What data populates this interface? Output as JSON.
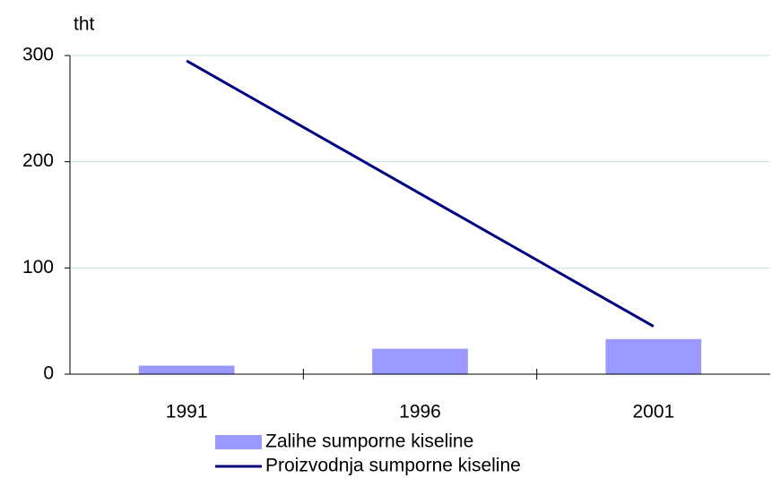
{
  "chart_data": {
    "type": "bar",
    "y_axis_label": "tht",
    "categories": [
      "1991",
      "1996",
      "2001"
    ],
    "series": [
      {
        "name": "Zalihe sumporne kiseline",
        "type": "bar",
        "color": "#9999ff",
        "values": [
          8,
          24,
          33
        ]
      },
      {
        "name": "Proizvodnja sumporne kiseline",
        "type": "line",
        "color": "#000080",
        "values": [
          295,
          170,
          45
        ]
      }
    ],
    "ylim": [
      0,
      300
    ],
    "yticks": [
      0,
      100,
      200,
      300
    ],
    "grid": true,
    "grid_color": "#c8e6e6",
    "legend": "bottom"
  }
}
